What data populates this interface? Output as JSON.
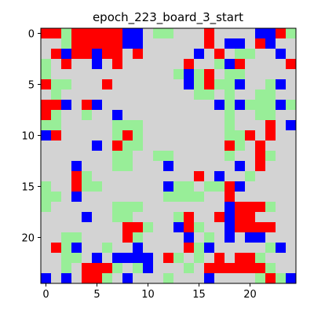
{
  "title": "epoch_223_board_3_start",
  "board": {
    "size": 25,
    "legend_colors": {
      "E": "#d3d3d3",
      "G": "#98ee98",
      "R": "#ff0000",
      "B": "#0000ff"
    },
    "rows": [
      "RRGRRRRRBBEGGEEEREEEEBBRG",
      "EEGRRRRRBBEEEEEEREBBERBEE",
      "ERBRRBRREREEEEEBEREGGEEBE",
      "GEREEBEREEEEEEREEGBREEEER",
      "GEEEEEEEEEEEEGBGREGGEEEEE",
      "RGGEEEREEEEEEEBGRGGBEEGBE",
      "EGEEEEEEEEEEEEEGGEGEEGGEE",
      "RRBERBEEEEEEEEEEEBGBGGGBG",
      "RGEEGEEBEEEEEEEEEEGEEGGEE",
      "GGEEEEEGGGEEEEEEEEGEEEREB",
      "BREEEEEGRGEEEEEEEEGGREREE",
      "EEEEEBERGGEEEEEEEERGEREEE",
      "EEEEEEEGGEEGGEEEEEGEERGEE",
      "EEEBEEEGGEEEBEEEEEEBEREEE",
      "EEERGEEEEEEEEEEREBEEGEEEE",
      "GEERGGEEEEEEBGGEGGRBEEEEE",
      "GGEBEEEEEEEEGGGGEEREEEEEE",
      "GEEEEEEGGGEEEEEEEEBRRRGEE",
      "EEEEBEEGGEEEEGREERBRREEEE",
      "EEEEEEEERRGEEBRGEEBRRRREE",
      "EEGGEEEERGEEEEBEGEBEBBEEE",
      "ERGBEEGEEBEEEERGBEEEEEGBE",
      "EEGGEBEBBBBERGEGERERRGEEE",
      "EEGERRRGEGBEEEGERRRRRRGEE",
      "BEBERRGEBEEEGEEEBEEEEGRGB"
    ]
  },
  "axes": {
    "x_ticks": [
      "0",
      "5",
      "10",
      "15",
      "20"
    ],
    "y_ticks": [
      "0",
      "5",
      "10",
      "15",
      "20"
    ]
  }
}
